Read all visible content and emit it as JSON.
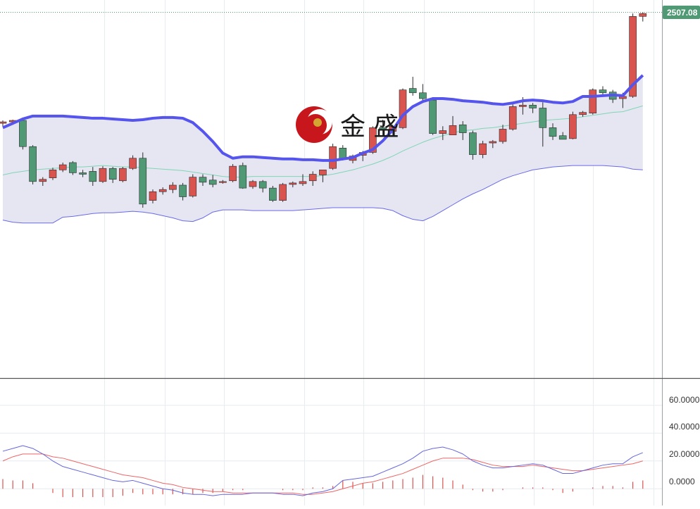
{
  "watermark": {
    "text": "金 盛"
  },
  "colors": {
    "up": "#d9534f",
    "down": "#4f9a74",
    "band_fill": "#e6e6f2",
    "band_upper": "#5555ee",
    "band_lower": "#6a6ae6",
    "band_mid": "#7fd6b4",
    "macd_line": "#6666dd",
    "signal_line": "#ee6666",
    "histogram": "#d9534f",
    "price_tag": "#4f9a74",
    "grid": "#e6ecf0"
  },
  "chart_data": [
    {
      "type": "candlestick",
      "title": "",
      "last_price_label": "2507.08",
      "series": [
        {
          "name": "candles",
          "ohlc": [
            [
              2356,
              2360,
              2352,
              2358
            ],
            [
              2358,
              2361,
              2354,
              2360
            ],
            [
              2360,
              2362,
              2320,
              2324
            ],
            [
              2324,
              2326,
              2272,
              2276
            ],
            [
              2276,
              2282,
              2270,
              2279
            ],
            [
              2281,
              2295,
              2278,
              2292
            ],
            [
              2292,
              2302,
              2289,
              2299
            ],
            [
              2302,
              2304,
              2285,
              2288
            ],
            [
              2288,
              2292,
              2282,
              2286
            ],
            [
              2290,
              2296,
              2270,
              2276
            ],
            [
              2276,
              2297,
              2274,
              2294
            ],
            [
              2294,
              2296,
              2274,
              2279
            ],
            [
              2277,
              2296,
              2275,
              2294
            ],
            [
              2294,
              2312,
              2292,
              2308
            ],
            [
              2308,
              2316,
              2240,
              2245
            ],
            [
              2250,
              2265,
              2246,
              2262
            ],
            [
              2262,
              2268,
              2258,
              2265
            ],
            [
              2265,
              2275,
              2260,
              2271
            ],
            [
              2271,
              2274,
              2250,
              2255
            ],
            [
              2256,
              2286,
              2254,
              2282
            ],
            [
              2282,
              2286,
              2270,
              2275
            ],
            [
              2278,
              2285,
              2268,
              2272
            ],
            [
              2276,
              2278,
              2273,
              2276
            ],
            [
              2277,
              2300,
              2275,
              2297
            ],
            [
              2298,
              2302,
              2266,
              2267
            ],
            [
              2269,
              2278,
              2266,
              2276
            ],
            [
              2276,
              2278,
              2261,
              2267
            ],
            [
              2267,
              2270,
              2248,
              2250
            ],
            [
              2250,
              2274,
              2248,
              2272
            ],
            [
              2272,
              2276,
              2268,
              2274
            ],
            [
              2273,
              2286,
              2270,
              2276
            ],
            [
              2277,
              2290,
              2270,
              2286
            ],
            [
              2285,
              2292,
              2275,
              2292
            ],
            [
              2294,
              2328,
              2292,
              2324
            ],
            [
              2322,
              2326,
              2305,
              2307
            ],
            [
              2305,
              2313,
              2301,
              2311
            ],
            [
              2312,
              2318,
              2304,
              2316
            ],
            [
              2316,
              2352,
              2314,
              2350
            ],
            [
              2350,
              2361,
              2338,
              2347
            ],
            [
              2345,
              2354,
              2340,
              2352
            ],
            [
              2350,
              2404,
              2348,
              2402
            ],
            [
              2404,
              2420,
              2394,
              2398
            ],
            [
              2398,
              2410,
              2384,
              2390
            ],
            [
              2388,
              2392,
              2340,
              2342
            ],
            [
              2342,
              2352,
              2333,
              2346
            ],
            [
              2340,
              2366,
              2340,
              2353
            ],
            [
              2354,
              2359,
              2333,
              2343
            ],
            [
              2343,
              2346,
              2306,
              2313
            ],
            [
              2313,
              2332,
              2308,
              2328
            ],
            [
              2329,
              2333,
              2322,
              2331
            ],
            [
              2331,
              2354,
              2328,
              2348
            ],
            [
              2348,
              2382,
              2346,
              2379
            ],
            [
              2379,
              2392,
              2368,
              2381
            ],
            [
              2381,
              2384,
              2370,
              2377
            ],
            [
              2377,
              2385,
              2324,
              2350
            ],
            [
              2350,
              2356,
              2333,
              2338
            ],
            [
              2339,
              2344,
              2334,
              2334
            ],
            [
              2335,
              2372,
              2334,
              2368
            ],
            [
              2368,
              2373,
              2365,
              2371
            ],
            [
              2370,
              2404,
              2368,
              2402
            ],
            [
              2402,
              2407,
              2395,
              2398
            ],
            [
              2399,
              2402,
              2384,
              2389
            ],
            [
              2390,
              2398,
              2377,
              2393
            ],
            [
              2393,
              2507,
              2391,
              2503
            ],
            [
              2503,
              2509,
              2496,
              2507
            ]
          ]
        },
        {
          "name": "upper band",
          "values": [
            2350,
            2356,
            2362,
            2366,
            2366,
            2366,
            2366,
            2365,
            2364,
            2363,
            2363,
            2362,
            2361,
            2360,
            2361,
            2363,
            2364,
            2364,
            2363,
            2357,
            2345,
            2331,
            2315,
            2308,
            2310,
            2310,
            2309,
            2308,
            2307,
            2307,
            2306,
            2306,
            2305,
            2305,
            2307,
            2309,
            2315,
            2320,
            2332,
            2347,
            2367,
            2379,
            2386,
            2390,
            2390,
            2389,
            2387,
            2386,
            2385,
            2383,
            2382,
            2384,
            2387,
            2388,
            2387,
            2385,
            2384,
            2386,
            2393,
            2393,
            2394,
            2395,
            2394,
            2409,
            2422
          ]
        },
        {
          "name": "middle band",
          "values": [
            2285,
            2288,
            2290,
            2292,
            2293,
            2294,
            2295,
            2296,
            2296,
            2297,
            2298,
            2297,
            2296,
            2296,
            2295,
            2294,
            2293,
            2292,
            2291,
            2289,
            2287,
            2285,
            2283,
            2282,
            2282,
            2283,
            2283,
            2283,
            2283,
            2283,
            2283,
            2283,
            2284,
            2286,
            2289,
            2292,
            2296,
            2300,
            2305,
            2311,
            2318,
            2324,
            2330,
            2335,
            2339,
            2343,
            2346,
            2347,
            2349,
            2350,
            2352,
            2354,
            2356,
            2358,
            2360,
            2361,
            2362,
            2363,
            2365,
            2367,
            2369,
            2371,
            2372,
            2376,
            2380
          ]
        },
        {
          "name": "lower band",
          "values": [
            2223,
            2220,
            2219,
            2219,
            2219,
            2219,
            2227,
            2228,
            2230,
            2232,
            2233,
            2233,
            2234,
            2235,
            2234,
            2232,
            2229,
            2226,
            2222,
            2221,
            2226,
            2234,
            2237,
            2237,
            2237,
            2236,
            2236,
            2236,
            2236,
            2236,
            2237,
            2238,
            2239,
            2240,
            2240,
            2240,
            2240,
            2240,
            2239,
            2236,
            2229,
            2224,
            2222,
            2228,
            2236,
            2244,
            2252,
            2259,
            2265,
            2272,
            2279,
            2284,
            2288,
            2292,
            2294,
            2296,
            2297,
            2298,
            2298,
            2298,
            2298,
            2297,
            2296,
            2293,
            2292
          ]
        }
      ]
    },
    {
      "type": "line",
      "title": "",
      "y_ticks": [
        "60.0000",
        "40.0000",
        "20.0000",
        "0.0000"
      ],
      "ylim": [
        -12,
        72
      ],
      "series": [
        {
          "name": "macd",
          "values": [
            27,
            29,
            31,
            29,
            25,
            20,
            16,
            14,
            12,
            10,
            8,
            6,
            5,
            6,
            4,
            2,
            0,
            -1,
            -3,
            -4,
            -4,
            -5,
            -4,
            -4,
            -4,
            -3,
            -3,
            -3,
            -4,
            -4,
            -5,
            -3,
            -2,
            0,
            6,
            7,
            8,
            9,
            12,
            15,
            18,
            22,
            27,
            29,
            30,
            28,
            25,
            20,
            17,
            15,
            15,
            16,
            17,
            18,
            17,
            14,
            11,
            11,
            13,
            15,
            17,
            18,
            18,
            23,
            26
          ]
        },
        {
          "name": "signal",
          "values": [
            20,
            23,
            25,
            25,
            25,
            23,
            22,
            20,
            18,
            16,
            14,
            12,
            10,
            9,
            8,
            6,
            4,
            3,
            1,
            0,
            -1,
            -2,
            -2,
            -3,
            -3,
            -3,
            -3,
            -3,
            -3,
            -3,
            -4,
            -4,
            -3,
            -2,
            0,
            2,
            4,
            5,
            7,
            9,
            11,
            14,
            17,
            20,
            22,
            22,
            22,
            21,
            19,
            17,
            16,
            16,
            16,
            17,
            16,
            15,
            14,
            13,
            13,
            14,
            15,
            16,
            17,
            18,
            20
          ]
        },
        {
          "name": "histogram",
          "values": [
            7,
            6,
            6,
            4,
            0,
            -3,
            -6,
            -6,
            -6,
            -6,
            -6,
            -6,
            -5,
            -3,
            -4,
            -4,
            -4,
            -4,
            -4,
            -4,
            -3,
            -3,
            -2,
            -1,
            -1,
            0,
            0,
            0,
            -1,
            -1,
            -1,
            1,
            1,
            2,
            6,
            5,
            4,
            4,
            5,
            6,
            7,
            8,
            10,
            9,
            8,
            6,
            3,
            -1,
            -2,
            -2,
            -1,
            0,
            1,
            1,
            1,
            -1,
            -3,
            -2,
            0,
            1,
            2,
            2,
            1,
            5,
            6
          ]
        }
      ]
    }
  ]
}
